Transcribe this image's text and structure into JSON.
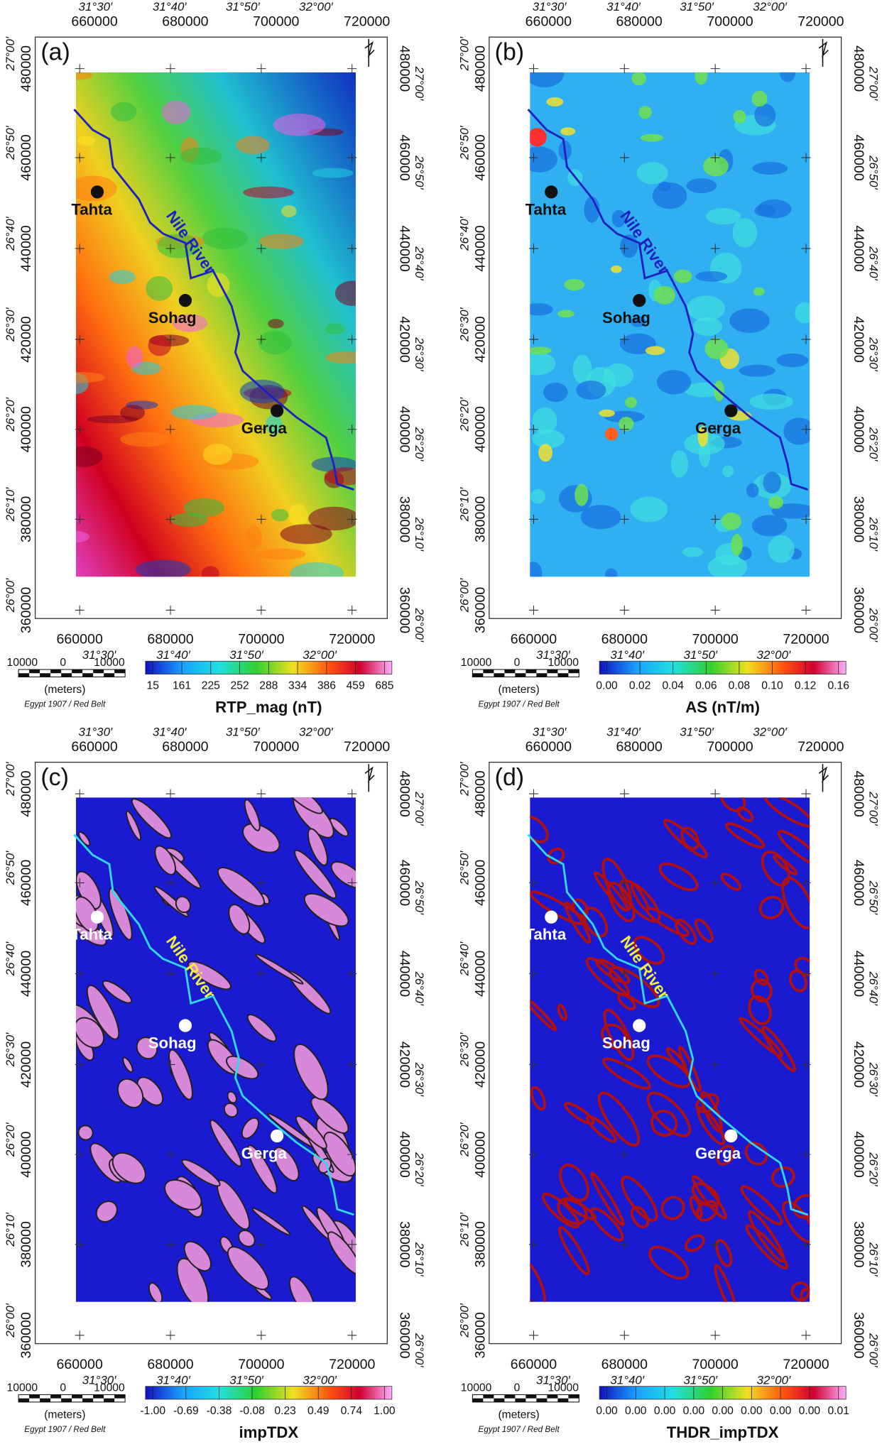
{
  "map_axes": {
    "lon_labels": [
      "31°30′",
      "31°40′",
      "31°50′",
      "32°00′"
    ],
    "eastings": [
      "660000",
      "680000",
      "700000",
      "720000"
    ],
    "northings": [
      "480000",
      "460000",
      "440000",
      "420000",
      "400000",
      "380000",
      "360000"
    ],
    "lat_labels": [
      "27°00′",
      "26°50′",
      "26°40′",
      "26°30′",
      "26°20′",
      "26°10′",
      "26°00′"
    ]
  },
  "cities": [
    "Tahta",
    "Sohag",
    "Gerga"
  ],
  "river_label": "Nile River",
  "scale_bar": {
    "labels": [
      "10000",
      "0",
      "10000"
    ],
    "unit": "(meters)",
    "datum": "Egypt 1907 / Red Belt"
  },
  "panels": [
    {
      "label": "(a)",
      "colorbar_ticks": [
        "15",
        "161",
        "225",
        "252",
        "288",
        "334",
        "386",
        "459",
        "685"
      ],
      "colorbar_title": "RTP_mag (nT)"
    },
    {
      "label": "(b)",
      "colorbar_ticks": [
        "0.00",
        "0.02",
        "0.04",
        "0.06",
        "0.08",
        "0.10",
        "0.12",
        "0.16"
      ],
      "colorbar_title": "AS (nT/m)"
    },
    {
      "label": "(c)",
      "colorbar_ticks": [
        "-1.00",
        "-0.69",
        "-0.38",
        "-0.08",
        "0.23",
        "0.49",
        "0.74",
        "1.00"
      ],
      "colorbar_title": "impTDX"
    },
    {
      "label": "(d)",
      "colorbar_ticks": [
        "0.00",
        "0.00",
        "0.00",
        "0.00",
        "0.00",
        "0.00",
        "0.00",
        "0.00",
        "0.01"
      ],
      "colorbar_title": "THDR_impTDX"
    }
  ]
}
